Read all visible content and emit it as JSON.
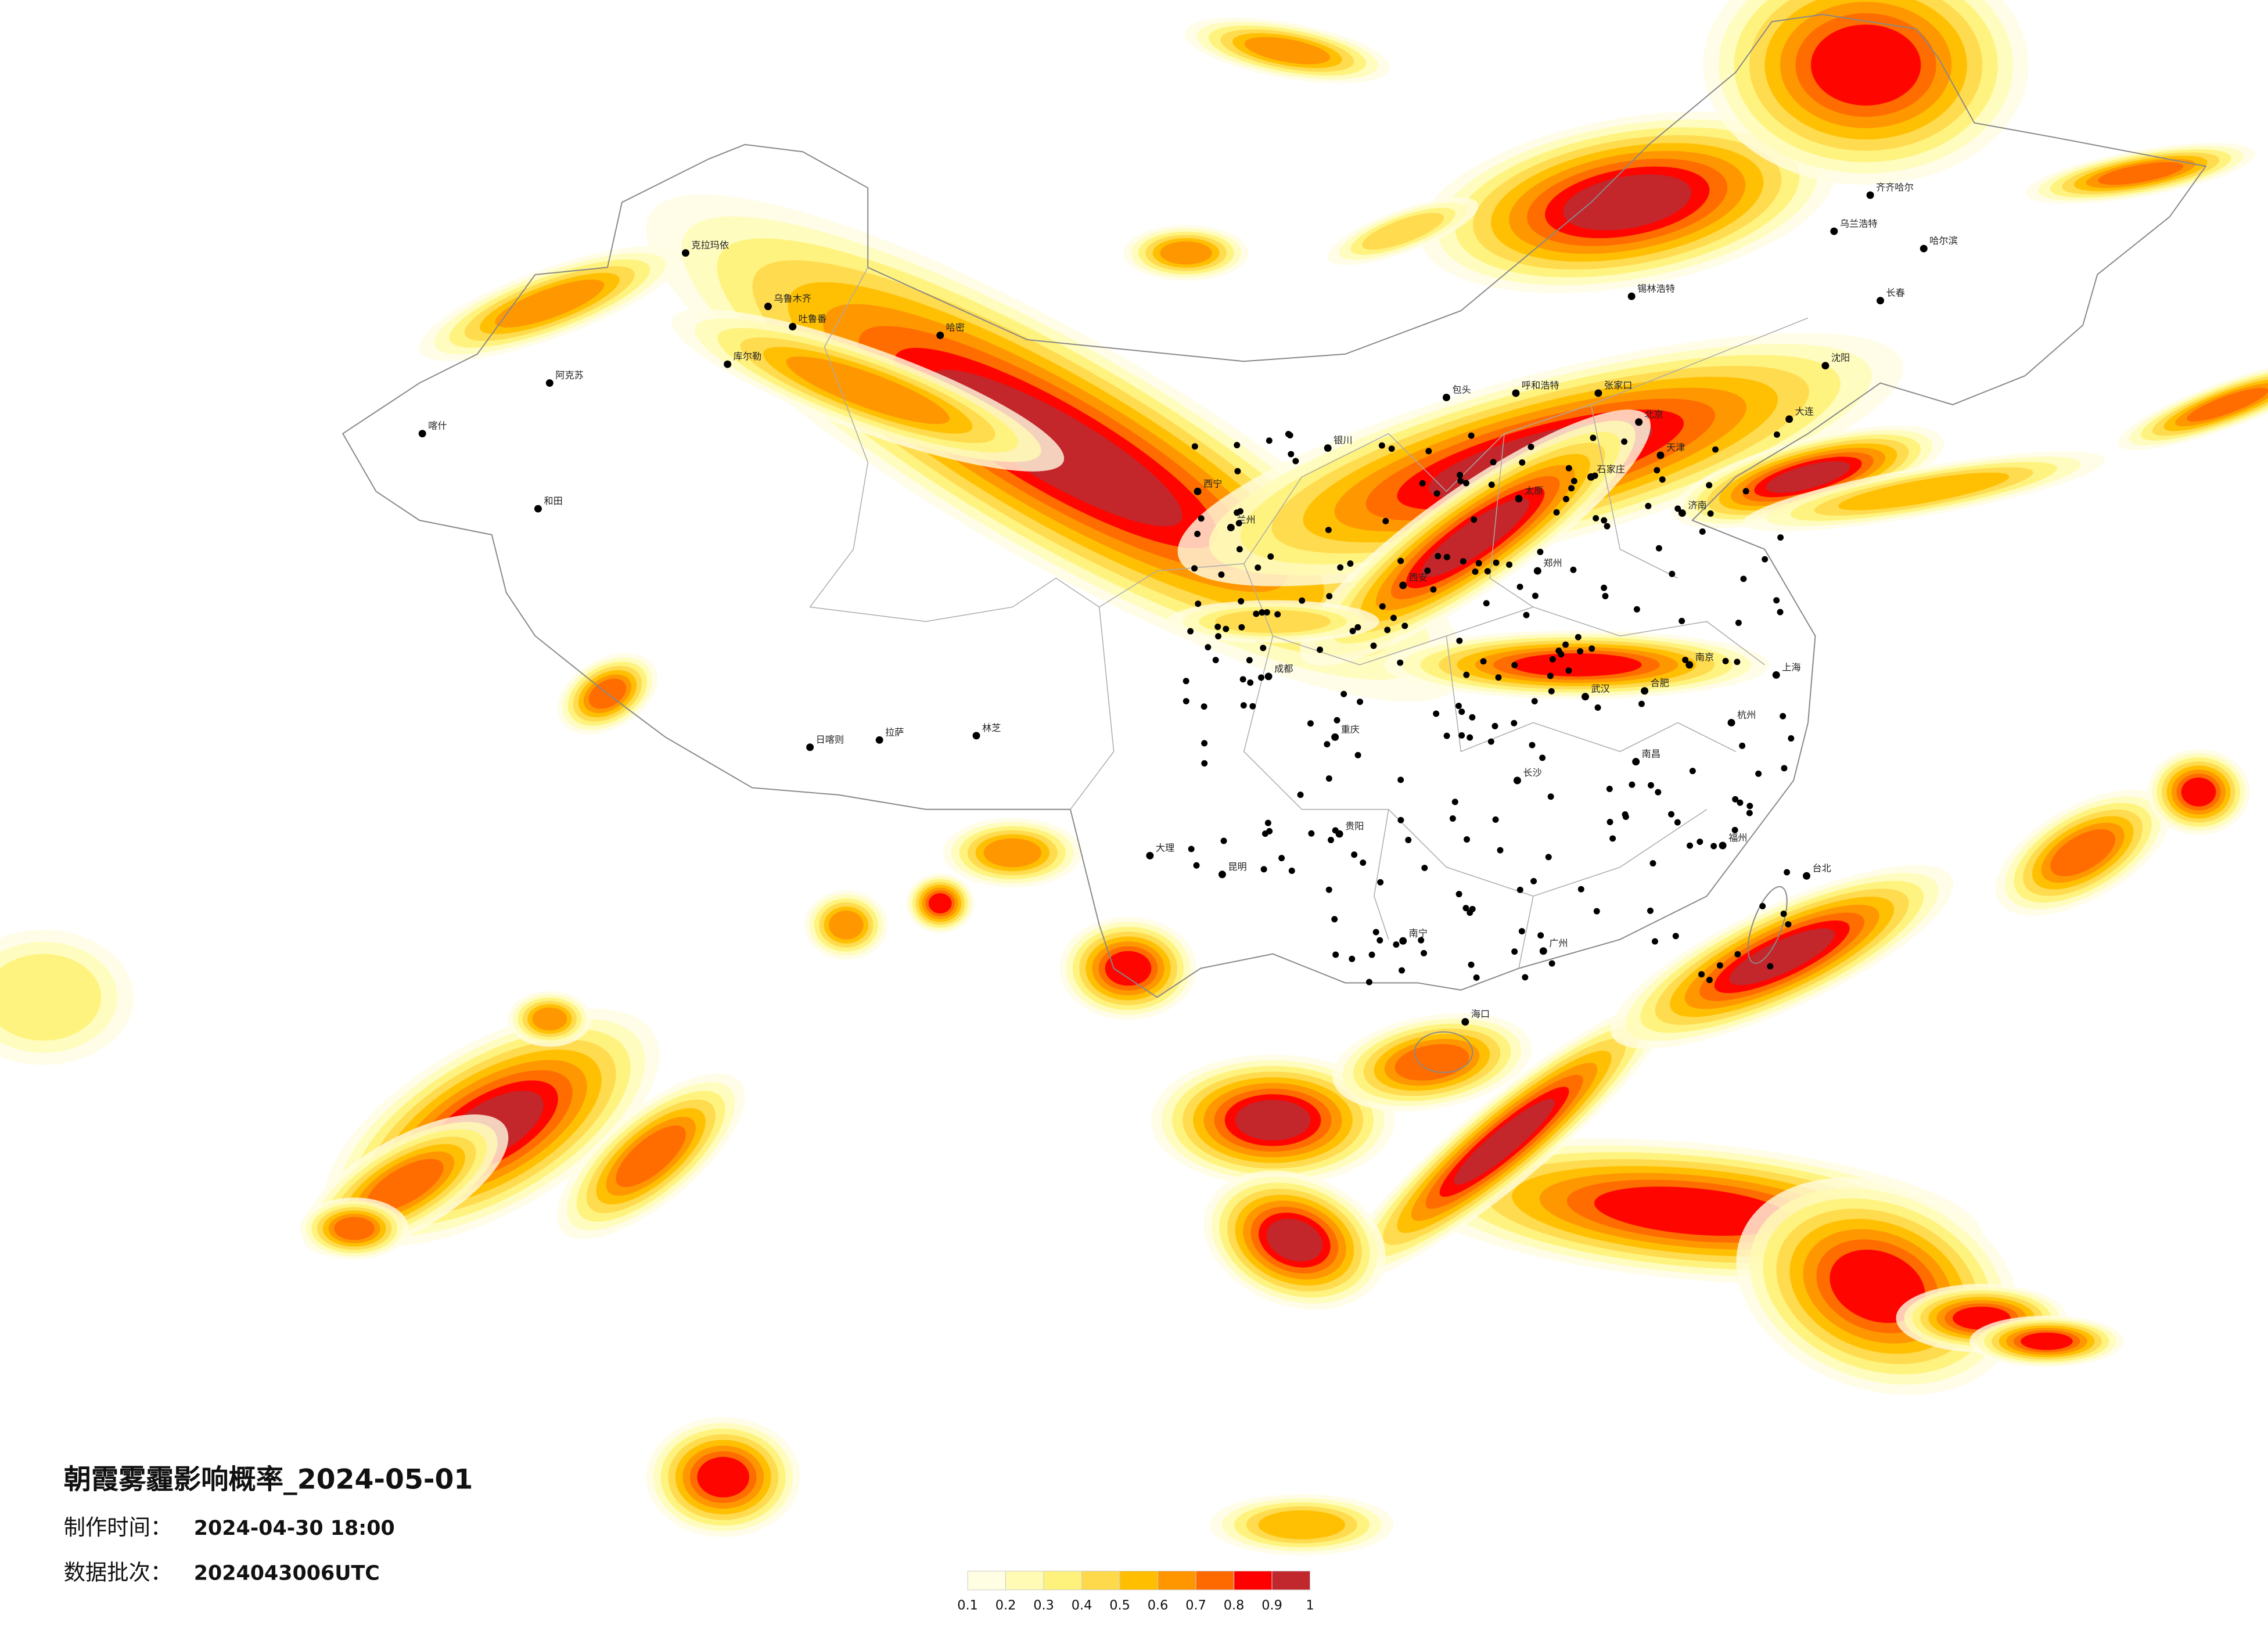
{
  "title": "朝霞雾霾影响概率_2024-05-01",
  "produced_label": "制作时间：",
  "produced_time": "2024-04-30 18:00",
  "batch_label": "数据批次：",
  "batch": "2024043006UTC",
  "legend": {
    "ticks": [
      0.1,
      0.2,
      0.3,
      0.4,
      0.5,
      0.6,
      0.7,
      0.8,
      0.9,
      1
    ],
    "colors": [
      "#fffde2",
      "#fffbb4",
      "#fff27c",
      "#ffd94c",
      "#ffbf00",
      "#ff9600",
      "#ff6a00",
      "#ff0000",
      "#c0282d"
    ]
  },
  "cities": [
    "克拉玛依",
    "乌鲁木齐",
    "哈密",
    "喀什",
    "和田",
    "阿克苏",
    "吐鲁番",
    "库尔勒",
    "拉萨",
    "日喀则",
    "林芝",
    "西宁",
    "兰州",
    "银川",
    "呼和浩特",
    "北京",
    "天津",
    "石家庄",
    "太原",
    "济南",
    "郑州",
    "西安",
    "成都",
    "重庆",
    "贵阳",
    "昆明",
    "南宁",
    "广州",
    "长沙",
    "武汉",
    "南昌",
    "杭州",
    "上海",
    "南京",
    "合肥",
    "福州",
    "海口",
    "沈阳",
    "长春",
    "哈尔滨",
    "大连",
    "台北",
    "齐齐哈尔",
    "锡林浩特",
    "张家口",
    "大理",
    "乌兰浩特",
    "包头"
  ]
}
